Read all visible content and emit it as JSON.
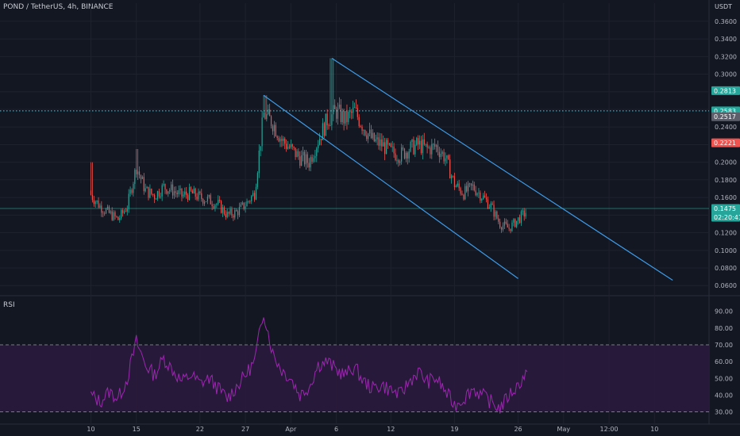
{
  "header": {
    "symbol_line": "POND / TetherUS, 4h, BINANCE",
    "currency": "USDT",
    "rsi_label": "RSI"
  },
  "colors": {
    "background": "#131722",
    "up": "#26a69a",
    "down": "#ef5350",
    "channel": "#3d9be9",
    "rsi_line": "#9c27b0",
    "rsi_band": "#2a1a3c",
    "cyan_tag": "#26a69a",
    "red_tag": "#ef5350",
    "dotted_line": "#4dd0e1"
  },
  "chart_data": [
    {
      "type": "candlestick",
      "title": "POND / TetherUS, 4h, BINANCE",
      "x_tick_labels": [
        "10",
        "15",
        "22",
        "27",
        "Apr",
        "6",
        "12",
        "19",
        "26",
        "May",
        "12:00",
        "10"
      ],
      "y_tick_labels": [
        "0.3600",
        "0.3400",
        "0.3200",
        "0.3000",
        "0.2800",
        "0.2600",
        "0.2400",
        "0.2200",
        "0.2000",
        "0.1800",
        "0.1600",
        "0.1400",
        "0.1200",
        "0.1000",
        "0.0800",
        "0.0600"
      ],
      "y_ticks": [
        0.36,
        0.34,
        0.32,
        0.3,
        0.28,
        0.26,
        0.24,
        0.22,
        0.2,
        0.18,
        0.16,
        0.14,
        0.12,
        0.1,
        0.08,
        0.06
      ],
      "ylim": [
        0.053,
        0.368
      ],
      "x_tick_days": [
        10,
        15,
        22,
        27,
        32,
        37,
        43,
        50,
        57,
        62,
        67,
        72
      ],
      "xlim": [
        0,
        78
      ],
      "close_series": [
        {
          "day": 10.0,
          "value": 0.163
        },
        {
          "day": 11.0,
          "value": 0.15
        },
        {
          "day": 12.0,
          "value": 0.142
        },
        {
          "day": 13.0,
          "value": 0.135
        },
        {
          "day": 14.0,
          "value": 0.15
        },
        {
          "day": 15.0,
          "value": 0.195
        },
        {
          "day": 16.0,
          "value": 0.168
        },
        {
          "day": 17.0,
          "value": 0.162
        },
        {
          "day": 18.0,
          "value": 0.172
        },
        {
          "day": 19.0,
          "value": 0.168
        },
        {
          "day": 20.0,
          "value": 0.162
        },
        {
          "day": 21.0,
          "value": 0.165
        },
        {
          "day": 22.0,
          "value": 0.16
        },
        {
          "day": 23.0,
          "value": 0.157
        },
        {
          "day": 24.0,
          "value": 0.152
        },
        {
          "day": 25.0,
          "value": 0.14
        },
        {
          "day": 26.0,
          "value": 0.143
        },
        {
          "day": 27.0,
          "value": 0.152
        },
        {
          "day": 28.0,
          "value": 0.165
        },
        {
          "day": 29.0,
          "value": 0.255
        },
        {
          "day": 30.0,
          "value": 0.245
        },
        {
          "day": 31.0,
          "value": 0.225
        },
        {
          "day": 32.0,
          "value": 0.215
        },
        {
          "day": 33.0,
          "value": 0.205
        },
        {
          "day": 34.0,
          "value": 0.2
        },
        {
          "day": 35.0,
          "value": 0.225
        },
        {
          "day": 36.0,
          "value": 0.248
        },
        {
          "day": 37.0,
          "value": 0.258
        },
        {
          "day": 38.0,
          "value": 0.248
        },
        {
          "day": 39.0,
          "value": 0.258
        },
        {
          "day": 40.0,
          "value": 0.24
        },
        {
          "day": 41.0,
          "value": 0.225
        },
        {
          "day": 42.0,
          "value": 0.22
        },
        {
          "day": 43.0,
          "value": 0.212
        },
        {
          "day": 44.0,
          "value": 0.208
        },
        {
          "day": 45.0,
          "value": 0.215
        },
        {
          "day": 46.0,
          "value": 0.22
        },
        {
          "day": 47.0,
          "value": 0.215
        },
        {
          "day": 48.0,
          "value": 0.218
        },
        {
          "day": 49.0,
          "value": 0.205
        },
        {
          "day": 50.0,
          "value": 0.175
        },
        {
          "day": 51.0,
          "value": 0.165
        },
        {
          "day": 52.0,
          "value": 0.172
        },
        {
          "day": 53.0,
          "value": 0.162
        },
        {
          "day": 54.0,
          "value": 0.15
        },
        {
          "day": 55.0,
          "value": 0.13
        },
        {
          "day": 56.0,
          "value": 0.125
        },
        {
          "day": 57.0,
          "value": 0.135
        },
        {
          "day": 58.0,
          "value": 0.145
        }
      ],
      "channel_upper": {
        "start": {
          "day": 36.5,
          "value": 0.318
        },
        "end": {
          "day": 74.0,
          "value": 0.066
        }
      },
      "channel_lower": {
        "start": {
          "day": 29.0,
          "value": 0.276
        },
        "end": {
          "day": 57.0,
          "value": 0.068
        }
      },
      "horizontal_levels": [
        {
          "value": 0.2583,
          "style": "dotted"
        },
        {
          "value": 0.1475,
          "style": "solid"
        }
      ],
      "price_tags": [
        {
          "label": "0.2813",
          "value": 0.2813,
          "kind": "cyan"
        },
        {
          "label": "0.2583",
          "value": 0.2583,
          "kind": "cyan"
        },
        {
          "label": "0.2517",
          "value": 0.2517,
          "kind": "gray"
        },
        {
          "label": "0.2221",
          "value": 0.2221,
          "kind": "red"
        },
        {
          "label": "0.1475",
          "value": 0.1475,
          "kind": "cyan",
          "sublabel": "02:20:41"
        }
      ]
    },
    {
      "type": "line",
      "title": "RSI",
      "y_tick_labels": [
        "90.00",
        "80.00",
        "70.00",
        "60.00",
        "50.00",
        "40.00",
        "30.00"
      ],
      "y_ticks": [
        90,
        80,
        70,
        60,
        50,
        40,
        30
      ],
      "ylim": [
        26,
        96
      ],
      "band": [
        30,
        70
      ],
      "series": [
        {
          "day": 10.0,
          "value": 40
        },
        {
          "day": 11.0,
          "value": 36
        },
        {
          "day": 12.0,
          "value": 42
        },
        {
          "day": 13.0,
          "value": 38
        },
        {
          "day": 14.0,
          "value": 50
        },
        {
          "day": 15.0,
          "value": 72
        },
        {
          "day": 16.0,
          "value": 58
        },
        {
          "day": 17.0,
          "value": 52
        },
        {
          "day": 18.0,
          "value": 62
        },
        {
          "day": 19.0,
          "value": 55
        },
        {
          "day": 20.0,
          "value": 48
        },
        {
          "day": 21.0,
          "value": 52
        },
        {
          "day": 22.0,
          "value": 47
        },
        {
          "day": 23.0,
          "value": 50
        },
        {
          "day": 24.0,
          "value": 44
        },
        {
          "day": 25.0,
          "value": 38
        },
        {
          "day": 26.0,
          "value": 45
        },
        {
          "day": 27.0,
          "value": 52
        },
        {
          "day": 28.0,
          "value": 60
        },
        {
          "day": 29.0,
          "value": 90
        },
        {
          "day": 30.0,
          "value": 65
        },
        {
          "day": 31.0,
          "value": 55
        },
        {
          "day": 32.0,
          "value": 50
        },
        {
          "day": 33.0,
          "value": 40
        },
        {
          "day": 34.0,
          "value": 45
        },
        {
          "day": 35.0,
          "value": 58
        },
        {
          "day": 36.0,
          "value": 60
        },
        {
          "day": 37.0,
          "value": 55
        },
        {
          "day": 38.0,
          "value": 52
        },
        {
          "day": 39.0,
          "value": 57
        },
        {
          "day": 40.0,
          "value": 48
        },
        {
          "day": 41.0,
          "value": 44
        },
        {
          "day": 42.0,
          "value": 46
        },
        {
          "day": 43.0,
          "value": 43
        },
        {
          "day": 44.0,
          "value": 40
        },
        {
          "day": 45.0,
          "value": 48
        },
        {
          "day": 46.0,
          "value": 54
        },
        {
          "day": 47.0,
          "value": 48
        },
        {
          "day": 48.0,
          "value": 50
        },
        {
          "day": 49.0,
          "value": 42
        },
        {
          "day": 50.0,
          "value": 34
        },
        {
          "day": 51.0,
          "value": 38
        },
        {
          "day": 52.0,
          "value": 44
        },
        {
          "day": 53.0,
          "value": 40
        },
        {
          "day": 54.0,
          "value": 36
        },
        {
          "day": 55.0,
          "value": 32
        },
        {
          "day": 56.0,
          "value": 40
        },
        {
          "day": 57.0,
          "value": 46
        },
        {
          "day": 58.0,
          "value": 54
        }
      ]
    }
  ]
}
